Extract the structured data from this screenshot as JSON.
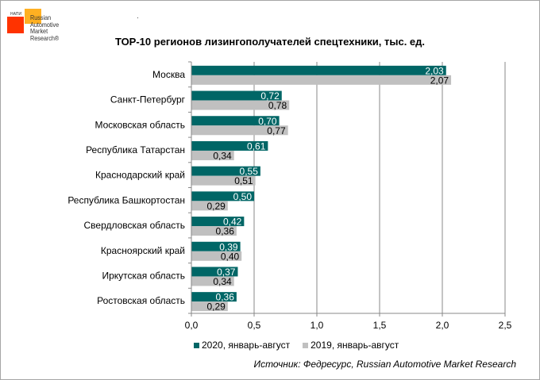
{
  "logo": {
    "small_label": "НАПИ",
    "lines": [
      "Russian",
      "Automotive",
      "Market",
      "Research®"
    ]
  },
  "chart_data": {
    "type": "bar",
    "orientation": "horizontal",
    "title": "ТОР-10 регионов лизингополучателей спецтехники, тыс. ед.",
    "categories": [
      "Москва",
      "Санкт-Петербург",
      "Московская область",
      "Республика Татарстан",
      "Краснодарский край",
      "Республика Башкортостан",
      "Свердловская область",
      "Красноярский край",
      "Иркутская область",
      "Ростовская область"
    ],
    "series": [
      {
        "name": "2020, январь-август",
        "color": "#006666",
        "values": [
          2.03,
          0.72,
          0.7,
          0.61,
          0.55,
          0.5,
          0.42,
          0.39,
          0.37,
          0.36
        ],
        "labels": [
          "2,03",
          "0,72",
          "0,70",
          "0,61",
          "0,55",
          "0,50",
          "0,42",
          "0,39",
          "0,37",
          "0,36"
        ]
      },
      {
        "name": "2019, январь-август",
        "color": "#c0c0c0",
        "values": [
          2.07,
          0.78,
          0.77,
          0.34,
          0.51,
          0.29,
          0.36,
          0.4,
          0.34,
          0.29
        ],
        "labels": [
          "2,07",
          "0,78",
          "0,77",
          "0,34",
          "0,51",
          "0,29",
          "0,36",
          "0,40",
          "0,34",
          "0,29"
        ]
      }
    ],
    "xlim": [
      0,
      2.5
    ],
    "xticks": [
      0,
      0.5,
      1.0,
      1.5,
      2.0,
      2.5
    ],
    "xtick_labels": [
      "0,0",
      "0,5",
      "1,0",
      "1,5",
      "2,0",
      "2,5"
    ],
    "grid": true,
    "legend_position": "bottom-left"
  },
  "source": "Источник: Федресурс, Russian Automotive Market Research"
}
